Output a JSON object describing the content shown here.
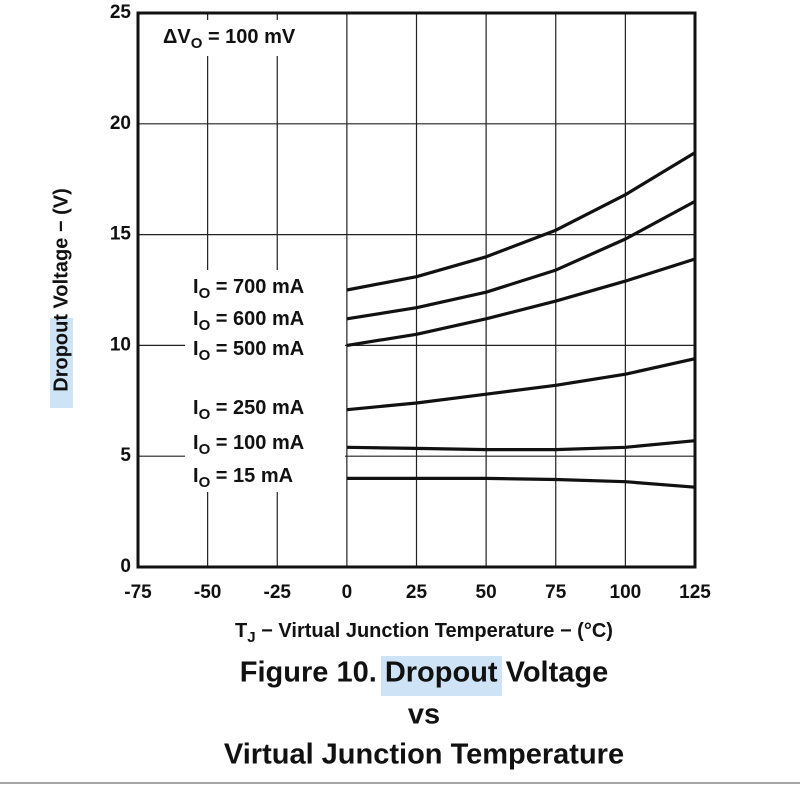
{
  "chart_data": {
    "type": "line",
    "title": [
      "Figure 10. Dropout Voltage",
      "vs",
      "Virtual Junction Temperature"
    ],
    "xlabel": "TJ − Virtual Junction Temperature − (°C)",
    "ylabel": "Dropout Voltage − (V)",
    "annotation": "ΔVO = 100 mV",
    "x": [
      0,
      25,
      50,
      75,
      100,
      125
    ],
    "series": [
      {
        "name": "IO = 700 mA",
        "color": "#111111",
        "values": [
          12.5,
          13.1,
          14.0,
          15.2,
          16.8,
          18.7
        ]
      },
      {
        "name": "IO = 600 mA",
        "color": "#111111",
        "values": [
          11.2,
          11.7,
          12.4,
          13.4,
          14.8,
          16.5
        ]
      },
      {
        "name": "IO = 500 mA",
        "color": "#111111",
        "values": [
          10.0,
          10.5,
          11.2,
          12.0,
          12.9,
          13.9
        ]
      },
      {
        "name": "IO = 250 mA",
        "color": "#111111",
        "values": [
          7.1,
          7.4,
          7.8,
          8.2,
          8.7,
          9.4
        ]
      },
      {
        "name": "IO = 100 mA",
        "color": "#111111",
        "values": [
          5.4,
          5.35,
          5.3,
          5.3,
          5.4,
          5.7
        ]
      },
      {
        "name": "IO = 15 mA",
        "color": "#111111",
        "values": [
          4.0,
          4.0,
          4.0,
          3.95,
          3.85,
          3.6
        ]
      }
    ],
    "xlim": [
      -75,
      125
    ],
    "xticks": [
      -75,
      -50,
      -25,
      0,
      25,
      50,
      75,
      100,
      125
    ],
    "ylim": [
      0,
      25
    ],
    "yticks": [
      0,
      5,
      10,
      15,
      20,
      25
    ],
    "grid": true
  }
}
